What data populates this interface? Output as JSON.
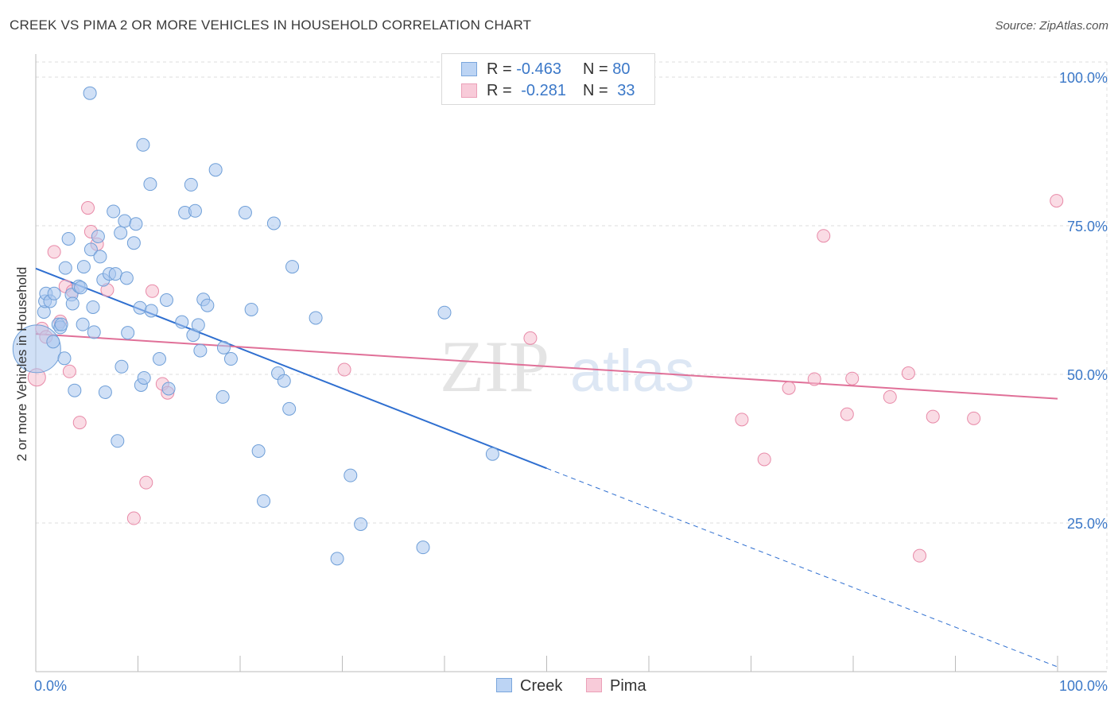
{
  "title": "CREEK VS PIMA 2 OR MORE VEHICLES IN HOUSEHOLD CORRELATION CHART",
  "source": "Source: ZipAtlas.com",
  "watermark": {
    "zip": "ZIP",
    "atlas": "atlas"
  },
  "legend_top": [
    {
      "r_label": "R =",
      "r_value": "-0.463",
      "n_label": "N =",
      "n_value": "80"
    },
    {
      "r_label": "R =",
      "r_value": "-0.281",
      "n_label": "N =",
      "n_value": "33"
    }
  ],
  "legend_bottom": [
    "Creek",
    "Pima"
  ],
  "colors": {
    "creek_fill": "#a9c7ef",
    "creek_stroke": "#6f9fd8",
    "creek_line": "#2f6fd0",
    "pima_fill": "#f6bfd0",
    "pima_stroke": "#e88aa8",
    "pima_line": "#e07098",
    "tick_label": "#3b78c8",
    "grid": "#dcdcdc"
  },
  "chart_data": {
    "type": "scatter",
    "title": "CREEK VS PIMA 2 OR MORE VEHICLES IN HOUSEHOLD CORRELATION CHART",
    "xlabel": "",
    "ylabel": "2 or more Vehicles in Household",
    "xlim": [
      0,
      100
    ],
    "ylim": [
      0,
      102
    ],
    "x_tick_labels": [
      "0.0%",
      "100.0%"
    ],
    "y_ticks": [
      25,
      50,
      75,
      100
    ],
    "y_tick_labels": [
      "25.0%",
      "50.0%",
      "75.0%",
      "100.0%"
    ],
    "series": [
      {
        "name": "Creek",
        "r": -0.463,
        "n": 80,
        "trend": {
          "x0": 0,
          "y0": 67.8,
          "x1": 50,
          "y1": 34.2,
          "dash_x1": 100,
          "dash_y1": 0.8
        },
        "points": [
          [
            0.1,
            54.3,
            30
          ],
          [
            0.8,
            60.5,
            8
          ],
          [
            0.9,
            62.3,
            8
          ],
          [
            1.0,
            63.6,
            8
          ],
          [
            1.4,
            62.3,
            8
          ],
          [
            1.7,
            55.5,
            8
          ],
          [
            1.8,
            63.6,
            8
          ],
          [
            2.2,
            58.4,
            8
          ],
          [
            2.4,
            57.9,
            8
          ],
          [
            2.5,
            58.4,
            8
          ],
          [
            2.8,
            52.7,
            8
          ],
          [
            2.9,
            67.9,
            8
          ],
          [
            3.2,
            72.8,
            8
          ],
          [
            3.5,
            63.4,
            8
          ],
          [
            3.6,
            61.9,
            8
          ],
          [
            3.8,
            47.3,
            8
          ],
          [
            4.2,
            64.8,
            8
          ],
          [
            4.4,
            64.6,
            8
          ],
          [
            4.6,
            58.4,
            8
          ],
          [
            4.7,
            68.1,
            8
          ],
          [
            5.3,
            97.3,
            8
          ],
          [
            5.4,
            71.0,
            8
          ],
          [
            5.6,
            61.3,
            8
          ],
          [
            5.7,
            57.1,
            8
          ],
          [
            6.1,
            73.2,
            8
          ],
          [
            6.3,
            69.8,
            8
          ],
          [
            6.6,
            65.9,
            8
          ],
          [
            6.8,
            47.0,
            8
          ],
          [
            7.2,
            66.9,
            8
          ],
          [
            7.6,
            77.4,
            8
          ],
          [
            7.8,
            66.9,
            8
          ],
          [
            8.0,
            38.8,
            8
          ],
          [
            8.3,
            73.8,
            8
          ],
          [
            8.4,
            51.3,
            8
          ],
          [
            8.7,
            75.8,
            8
          ],
          [
            8.9,
            66.2,
            8
          ],
          [
            9.0,
            57.0,
            8
          ],
          [
            9.6,
            72.1,
            8
          ],
          [
            9.8,
            75.3,
            8
          ],
          [
            10.2,
            61.2,
            8
          ],
          [
            10.5,
            88.6,
            8
          ],
          [
            10.3,
            48.2,
            8
          ],
          [
            10.6,
            49.4,
            8
          ],
          [
            11.2,
            82.0,
            8
          ],
          [
            11.3,
            60.7,
            8
          ],
          [
            12.1,
            52.6,
            8
          ],
          [
            12.8,
            62.5,
            8
          ],
          [
            13.0,
            47.6,
            8
          ],
          [
            14.3,
            58.8,
            8
          ],
          [
            14.6,
            77.2,
            8
          ],
          [
            15.2,
            81.9,
            8
          ],
          [
            15.4,
            56.6,
            8
          ],
          [
            15.6,
            77.5,
            8
          ],
          [
            15.9,
            58.3,
            8
          ],
          [
            16.1,
            54.0,
            8
          ],
          [
            16.4,
            62.6,
            8
          ],
          [
            16.8,
            61.6,
            8
          ],
          [
            17.6,
            84.4,
            8
          ],
          [
            18.3,
            46.2,
            8
          ],
          [
            18.4,
            54.5,
            8
          ],
          [
            19.1,
            52.6,
            8
          ],
          [
            20.5,
            77.2,
            8
          ],
          [
            21.1,
            60.9,
            8
          ],
          [
            21.8,
            37.1,
            8
          ],
          [
            22.3,
            28.7,
            8
          ],
          [
            23.3,
            75.4,
            8
          ],
          [
            23.7,
            50.2,
            8
          ],
          [
            24.3,
            48.9,
            8
          ],
          [
            24.8,
            44.2,
            8
          ],
          [
            25.1,
            68.1,
            8
          ],
          [
            27.4,
            59.5,
            8
          ],
          [
            29.5,
            19.0,
            8
          ],
          [
            30.8,
            33.0,
            8
          ],
          [
            31.8,
            24.8,
            8
          ],
          [
            37.9,
            20.9,
            8
          ],
          [
            40.0,
            60.4,
            8
          ],
          [
            44.7,
            36.6,
            8
          ]
        ]
      },
      {
        "name": "Pima",
        "r": -0.281,
        "n": 33,
        "trend": {
          "x0": 0,
          "y0": 56.8,
          "x1": 100,
          "y1": 45.9
        },
        "points": [
          [
            0.1,
            49.5,
            11
          ],
          [
            0.6,
            57.7,
            8
          ],
          [
            1.0,
            56.3,
            8
          ],
          [
            1.8,
            70.6,
            8
          ],
          [
            2.4,
            58.9,
            8
          ],
          [
            2.9,
            64.8,
            8
          ],
          [
            3.3,
            50.5,
            8
          ],
          [
            3.6,
            64.0,
            8
          ],
          [
            4.3,
            41.9,
            8
          ],
          [
            5.1,
            78.0,
            8
          ],
          [
            5.4,
            74.0,
            8
          ],
          [
            6.0,
            71.9,
            8
          ],
          [
            7.0,
            64.2,
            8
          ],
          [
            9.6,
            25.8,
            8
          ],
          [
            10.8,
            31.8,
            8
          ],
          [
            11.4,
            64.0,
            8
          ],
          [
            12.4,
            48.4,
            8
          ],
          [
            12.9,
            46.9,
            8
          ],
          [
            30.2,
            50.8,
            8
          ],
          [
            48.4,
            56.1,
            8
          ],
          [
            69.1,
            42.4,
            8
          ],
          [
            71.3,
            35.7,
            8
          ],
          [
            73.7,
            47.7,
            8
          ],
          [
            76.2,
            49.2,
            8
          ],
          [
            77.1,
            73.3,
            8
          ],
          [
            79.4,
            43.3,
            8
          ],
          [
            79.9,
            49.3,
            8
          ],
          [
            83.6,
            46.2,
            8
          ],
          [
            85.4,
            50.2,
            8
          ],
          [
            86.5,
            19.5,
            8
          ],
          [
            87.8,
            42.9,
            8
          ],
          [
            91.8,
            42.6,
            8
          ],
          [
            99.9,
            79.2,
            8
          ]
        ]
      }
    ]
  }
}
